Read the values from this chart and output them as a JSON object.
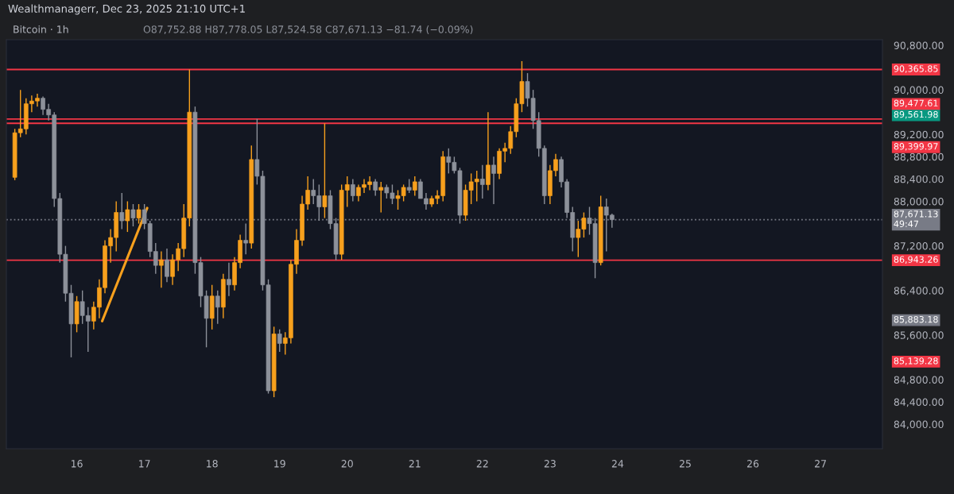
{
  "chart_data": {
    "type": "candlestick",
    "title": "Bitcoin · 1h",
    "subtitle": "O87,752.88 H87,778.05 L87,524.58 C87,671.13 −81.74 (−0.09%)",
    "annotations": [
      "Wealthmanagerr, Dec 23, 2025 21:10 UTC+1"
    ],
    "colors": [
      "#f7a01d",
      "#f7a01d",
      "#f7a01d",
      "#f7a01d",
      "#f7a01d",
      "#8d919a",
      "#8d919a",
      "#8d919a",
      "#8d919a",
      "#8d919a",
      "#8d919a",
      "#f7a01d",
      "#8d919a",
      "#8d919a",
      "#f7a01d",
      "#f7a01d",
      "#f7a01d",
      "#f7a01d",
      "#f7a01d",
      "#8d919a",
      "#f7a01d",
      "#8d919a",
      "#f7a01d",
      "#8d919a",
      "#8d919a",
      "#8d919a",
      "#f7a01d",
      "#8d919a",
      "#f7a01d",
      "#f7a01d",
      "#f7a01d",
      "#f7a01d",
      "#8d919a",
      "#8d919a",
      "#8d919a",
      "#f7a01d",
      "#8d919a",
      "#f7a01d",
      "#8d919a",
      "#f7a01d",
      "#f7a01d",
      "#8d919a",
      "#f7a01d",
      "#8d919a",
      "#8d919a",
      "#8d919a",
      "#f7a01d",
      "#8d919a",
      "#f7a01d",
      "#f7a01d",
      "#f7a01d",
      "#f7a01d",
      "#f7a01d",
      "#8d919a",
      "#8d919a",
      "#f7a01d",
      "#8d919a",
      "#8d919a",
      "#f7a01d",
      "#f7a01d",
      "#8d919a",
      "#f7a01d",
      "#f7a01d",
      "#f7a01d",
      "#8d919a",
      "#f7a01d",
      "#8d919a",
      "#8d919a",
      "#f7a01d",
      "#f7a01d",
      "#8d919a",
      "#f7a01d",
      "#8d919a",
      "#8d919a",
      "#f7a01d",
      "#f7a01d",
      "#f7a01d",
      "#8d919a",
      "#8d919a",
      "#8d919a",
      "#f7a01d",
      "#f7a01d",
      "#f7a01d",
      "#8d919a",
      "#f7a01d",
      "#8d919a",
      "#f7a01d",
      "#f7a01d",
      "#f7a01d",
      "#f7a01d",
      "#f7a01d",
      "#8d919a",
      "#8d919a",
      "#8d919a",
      "#8d919a",
      "#f7a01d",
      "#f7a01d",
      "#8d919a",
      "#8d919a",
      "#8d919a",
      "#f7a01d",
      "#f7a01d",
      "#8d919a",
      "#8d919a",
      "#f7a01d",
      "#8d919a",
      "#8d919a"
    ],
    "x": [
      "2025-12-15T02:00",
      "2025-12-15T04:00",
      "2025-12-15T06:00",
      "2025-12-15T08:00",
      "2025-12-15T10:00",
      "2025-12-15T12:00",
      "2025-12-15T14:00",
      "2025-12-15T16:00",
      "2025-12-15T18:00",
      "2025-12-15T20:00",
      "2025-12-15T22:00",
      "2025-12-16T00:00",
      "2025-12-16T02:00",
      "2025-12-16T04:00",
      "2025-12-16T06:00",
      "2025-12-16T08:00",
      "2025-12-16T10:00",
      "2025-12-16T12:00",
      "2025-12-16T14:00",
      "2025-12-16T16:00",
      "2025-12-16T18:00",
      "2025-12-16T20:00",
      "2025-12-16T22:00",
      "2025-12-17T00:00",
      "2025-12-17T02:00",
      "2025-12-17T04:00",
      "2025-12-17T06:00",
      "2025-12-17T08:00",
      "2025-12-17T10:00",
      "2025-12-17T12:00",
      "2025-12-17T14:00",
      "2025-12-17T16:00",
      "2025-12-17T18:00",
      "2025-12-17T20:00",
      "2025-12-17T22:00",
      "2025-12-18T00:00",
      "2025-12-18T02:00",
      "2025-12-18T04:00",
      "2025-12-18T06:00",
      "2025-12-18T08:00",
      "2025-12-18T10:00",
      "2025-12-18T12:00",
      "2025-12-18T14:00",
      "2025-12-18T16:00",
      "2025-12-18T18:00",
      "2025-12-18T20:00",
      "2025-12-18T22:00",
      "2025-12-19T00:00",
      "2025-12-19T02:00",
      "2025-12-19T04:00",
      "2025-12-19T06:00",
      "2025-12-19T08:00",
      "2025-12-19T10:00",
      "2025-12-19T12:00",
      "2025-12-19T14:00",
      "2025-12-19T16:00",
      "2025-12-19T18:00",
      "2025-12-19T20:00",
      "2025-12-19T22:00",
      "2025-12-20T00:00",
      "2025-12-20T02:00",
      "2025-12-20T04:00",
      "2025-12-20T06:00",
      "2025-12-20T08:00",
      "2025-12-20T10:00",
      "2025-12-20T12:00",
      "2025-12-20T14:00",
      "2025-12-20T16:00",
      "2025-12-20T18:00",
      "2025-12-20T20:00",
      "2025-12-20T22:00",
      "2025-12-21T00:00",
      "2025-12-21T02:00",
      "2025-12-21T04:00",
      "2025-12-21T06:00",
      "2025-12-21T08:00",
      "2025-12-21T10:00",
      "2025-12-21T12:00",
      "2025-12-21T14:00",
      "2025-12-21T16:00",
      "2025-12-21T18:00",
      "2025-12-21T20:00",
      "2025-12-21T22:00",
      "2025-12-22T00:00",
      "2025-12-22T02:00",
      "2025-12-22T04:00",
      "2025-12-22T06:00",
      "2025-12-22T08:00",
      "2025-12-22T10:00",
      "2025-12-22T12:00",
      "2025-12-22T14:00",
      "2025-12-22T16:00",
      "2025-12-22T18:00",
      "2025-12-22T20:00",
      "2025-12-22T22:00",
      "2025-12-23T00:00",
      "2025-12-23T02:00",
      "2025-12-23T04:00",
      "2025-12-23T06:00",
      "2025-12-23T08:00",
      "2025-12-23T10:00",
      "2025-12-23T12:00",
      "2025-12-23T14:00",
      "2025-12-23T16:00",
      "2025-12-23T18:00",
      "2025-12-23T20:00",
      "2025-12-23T22:00"
    ],
    "ohlc": [
      [
        88430,
        89300,
        88380,
        89230
      ],
      [
        89230,
        90000,
        89150,
        89300
      ],
      [
        89300,
        89850,
        89200,
        89750
      ],
      [
        89750,
        89900,
        89600,
        89800
      ],
      [
        89800,
        89930,
        89700,
        89850
      ],
      [
        89850,
        89880,
        89550,
        89650
      ],
      [
        89650,
        89750,
        89450,
        89550
      ],
      [
        89550,
        89600,
        87900,
        88050
      ],
      [
        88050,
        88150,
        86900,
        87050
      ],
      [
        87050,
        87200,
        86200,
        86350
      ],
      [
        86350,
        86500,
        85200,
        85800
      ],
      [
        85800,
        86300,
        85650,
        86200
      ],
      [
        86200,
        86400,
        85800,
        85950
      ],
      [
        85950,
        86100,
        85300,
        85850
      ],
      [
        85850,
        86200,
        85700,
        86100
      ],
      [
        86100,
        86600,
        85900,
        86450
      ],
      [
        86450,
        87300,
        86350,
        87200
      ],
      [
        87200,
        87500,
        86900,
        87350
      ],
      [
        87350,
        88000,
        87100,
        87800
      ],
      [
        87800,
        88150,
        87500,
        87650
      ],
      [
        87650,
        88000,
        87450,
        87850
      ],
      [
        87850,
        87950,
        87550,
        87700
      ],
      [
        87700,
        87950,
        87600,
        87850
      ],
      [
        87850,
        87950,
        87500,
        87600
      ],
      [
        87600,
        87650,
        87000,
        87100
      ],
      [
        87100,
        87250,
        86700,
        86850
      ],
      [
        86850,
        87100,
        86450,
        86950
      ],
      [
        86950,
        87150,
        86550,
        86650
      ],
      [
        86650,
        87050,
        86500,
        86950
      ],
      [
        86950,
        87250,
        86750,
        87150
      ],
      [
        87150,
        87950,
        87000,
        87700
      ],
      [
        87700,
        90366,
        87550,
        89600
      ],
      [
        89600,
        89700,
        86700,
        86900
      ],
      [
        86900,
        87000,
        86100,
        86300
      ],
      [
        86300,
        86400,
        85380,
        85900
      ],
      [
        85900,
        86500,
        85700,
        86300
      ],
      [
        86300,
        86400,
        85800,
        86100
      ],
      [
        86100,
        86700,
        85900,
        86600
      ],
      [
        86600,
        86900,
        86300,
        86500
      ],
      [
        86500,
        87000,
        86400,
        86900
      ],
      [
        86900,
        87400,
        86800,
        87300
      ],
      [
        87300,
        87600,
        87050,
        87250
      ],
      [
        87250,
        89000,
        87150,
        88750
      ],
      [
        88750,
        89478,
        88300,
        88450
      ],
      [
        88450,
        88550,
        86400,
        86500
      ],
      [
        86500,
        86600,
        84550,
        84600
      ],
      [
        84600,
        85750,
        84485,
        85620
      ],
      [
        85620,
        85700,
        85300,
        85450
      ],
      [
        85450,
        85650,
        85250,
        85550
      ],
      [
        85550,
        86950,
        85450,
        86870
      ],
      [
        86870,
        87500,
        86700,
        87300
      ],
      [
        87300,
        88100,
        87200,
        87950
      ],
      [
        87950,
        88450,
        87850,
        88200
      ],
      [
        88200,
        88400,
        87950,
        88100
      ],
      [
        88100,
        88300,
        87650,
        87900
      ],
      [
        87900,
        89400,
        87700,
        88100
      ],
      [
        88100,
        88200,
        87500,
        87600
      ],
      [
        87600,
        87700,
        86943,
        87050
      ],
      [
        87050,
        88300,
        86950,
        88200
      ],
      [
        88200,
        88450,
        87900,
        88300
      ],
      [
        88300,
        88400,
        88000,
        88100
      ],
      [
        88100,
        88300,
        88000,
        88250
      ],
      [
        88250,
        88400,
        88150,
        88300
      ],
      [
        88300,
        88450,
        88200,
        88350
      ],
      [
        88350,
        88400,
        88100,
        88200
      ],
      [
        88200,
        88350,
        87800,
        88250
      ],
      [
        88250,
        88300,
        88050,
        88150
      ],
      [
        88150,
        88300,
        87950,
        88050
      ],
      [
        88050,
        88200,
        87850,
        88100
      ],
      [
        88100,
        88300,
        88000,
        88250
      ],
      [
        88250,
        88400,
        88150,
        88200
      ],
      [
        88200,
        88450,
        88100,
        88350
      ],
      [
        88350,
        88400,
        88050,
        88050
      ],
      [
        88050,
        88150,
        87850,
        87950
      ],
      [
        87950,
        88100,
        87900,
        88050
      ],
      [
        88050,
        88200,
        87950,
        88100
      ],
      [
        88100,
        88900,
        88000,
        88800
      ],
      [
        88800,
        88950,
        88500,
        88700
      ],
      [
        88700,
        88800,
        88500,
        88550
      ],
      [
        88550,
        88600,
        87600,
        87750
      ],
      [
        87750,
        88300,
        87650,
        88200
      ],
      [
        88200,
        88500,
        87950,
        88350
      ],
      [
        88350,
        88550,
        88000,
        88400
      ],
      [
        88400,
        88650,
        88050,
        88300
      ],
      [
        88300,
        89600,
        88200,
        88650
      ],
      [
        88650,
        88800,
        87950,
        88500
      ],
      [
        88500,
        88950,
        88400,
        88900
      ],
      [
        88900,
        89050,
        88700,
        88950
      ],
      [
        88950,
        89350,
        88850,
        89250
      ],
      [
        89250,
        89850,
        89150,
        89750
      ],
      [
        89750,
        90515,
        89600,
        90150
      ],
      [
        90150,
        90300,
        89700,
        89850
      ],
      [
        89850,
        90000,
        89300,
        89450
      ],
      [
        89450,
        89600,
        88800,
        88950
      ],
      [
        88950,
        89000,
        87950,
        88100
      ],
      [
        88100,
        88650,
        87950,
        88550
      ],
      [
        88550,
        88850,
        88450,
        88750
      ],
      [
        88750,
        88800,
        88250,
        88350
      ],
      [
        88350,
        88400,
        87700,
        87800
      ],
      [
        87800,
        87900,
        87100,
        87350
      ],
      [
        87350,
        87650,
        87000,
        87500
      ],
      [
        87500,
        87800,
        87350,
        87700
      ],
      [
        87700,
        87900,
        87400,
        87600
      ],
      [
        87600,
        87700,
        86620,
        86900
      ],
      [
        86900,
        88100,
        86850,
        87900
      ],
      [
        87900,
        88050,
        87100,
        87750
      ],
      [
        87752.88,
        87778.05,
        87524.58,
        87671.13
      ]
    ],
    "series": [
      {
        "type": "line",
        "color": "#f7a01d",
        "x": [
          "2025-12-16T09:00",
          "2025-12-17T01:00"
        ],
        "values": [
          85850,
          87880
        ]
      }
    ],
    "xlim": [
      "2025-12-14T23:00",
      "2025-12-27T22:00"
    ],
    "xticks": [
      {
        "value": "2025-12-16",
        "label": "16"
      },
      {
        "value": "2025-12-17",
        "label": "17"
      },
      {
        "value": "2025-12-18",
        "label": "18"
      },
      {
        "value": "2025-12-19",
        "label": "19"
      },
      {
        "value": "2025-12-20",
        "label": "20"
      },
      {
        "value": "2025-12-21",
        "label": "21"
      },
      {
        "value": "2025-12-22",
        "label": "22"
      },
      {
        "value": "2025-12-23",
        "label": "23"
      },
      {
        "value": "2025-12-24",
        "label": "24"
      },
      {
        "value": "2025-12-25",
        "label": "25"
      },
      {
        "value": "2025-12-26",
        "label": "26"
      },
      {
        "value": "2025-12-27",
        "label": "27"
      }
    ],
    "ylim": [
      83560,
      90900
    ],
    "yticks": [
      {
        "value": 84000,
        "label": "84,000.00"
      },
      {
        "value": 84400,
        "label": "84,400.00"
      },
      {
        "value": 84800,
        "label": "84,800.00"
      },
      {
        "value": 85600,
        "label": "85,600.00"
      },
      {
        "value": 86400,
        "label": "86,400.00"
      },
      {
        "value": 87200,
        "label": "87,200.00"
      },
      {
        "value": 88000,
        "label": "88,000.00"
      },
      {
        "value": 88400,
        "label": "88,400.00"
      },
      {
        "value": 88800,
        "label": "88,800.00"
      },
      {
        "value": 89200,
        "label": "89,200.00"
      },
      {
        "value": 89561.98,
        "label": "89,561.98"
      },
      {
        "value": 85883.18,
        "label": "85,883.18"
      },
      {
        "value": 85139.28,
        "label": "85,139.28"
      },
      {
        "value": 90000,
        "label": "90,000.00"
      },
      {
        "value": 90800,
        "label": "90,800.00"
      }
    ],
    "ref_lines": [
      {
        "axis": "y",
        "value": 90365.85,
        "label": "90,365.85",
        "color": "#f23645"
      },
      {
        "axis": "y",
        "value": 89477.61,
        "label": "89,477.61",
        "color": "#f23645"
      },
      {
        "axis": "y",
        "value": 89399.97,
        "label": "89,399.97",
        "color": "#f23645"
      },
      {
        "axis": "y",
        "value": 86943.26,
        "label": "86,943.26",
        "color": "#f23645"
      },
      {
        "axis": "y",
        "value": 87671.13,
        "label": "87,671.13\n49:47",
        "color": "#787b86",
        "line_style": "dotted"
      }
    ]
  }
}
